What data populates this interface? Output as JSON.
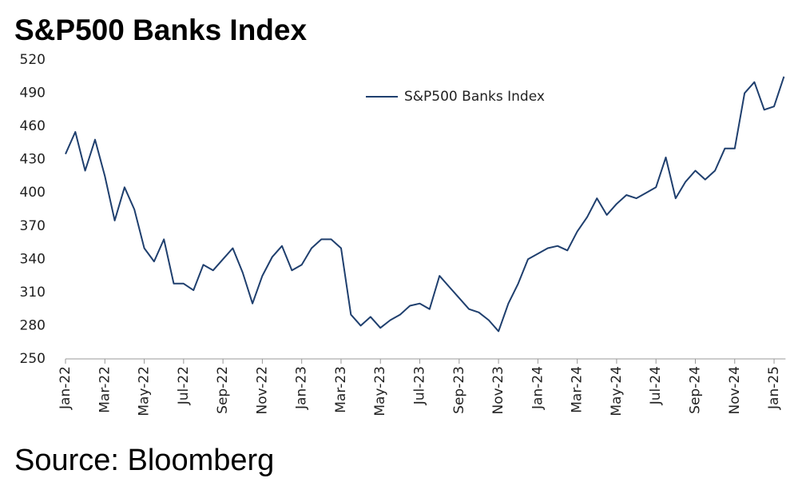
{
  "chart_data": {
    "type": "line",
    "title": "S&P500 Banks Index",
    "source": "Source: Bloomberg",
    "categories": [
      "Jan-22",
      null,
      null,
      null,
      "Mar-22",
      null,
      null,
      null,
      "May-22",
      null,
      null,
      null,
      "Jul-22",
      null,
      null,
      null,
      "Sep-22",
      null,
      null,
      null,
      "Nov-22",
      null,
      null,
      null,
      "Jan-23",
      null,
      null,
      null,
      "Mar-23",
      null,
      null,
      null,
      "May-23",
      null,
      null,
      null,
      "Jul-23",
      null,
      null,
      null,
      "Sep-23",
      null,
      null,
      null,
      "Nov-23",
      null,
      null,
      null,
      "Jan-24",
      null,
      null,
      null,
      "Mar-24",
      null,
      null,
      null,
      "May-24",
      null,
      null,
      null,
      "Jul-24",
      null,
      null,
      null,
      "Sep-24",
      null,
      null,
      null,
      "Nov-24",
      null,
      null,
      null,
      "Jan-25",
      null
    ],
    "series": [
      {
        "name": "S&P500 Banks Index",
        "color": "#1f3f6e",
        "values": [
          435,
          455,
          420,
          448,
          415,
          375,
          405,
          385,
          350,
          338,
          358,
          318,
          318,
          312,
          335,
          330,
          340,
          350,
          328,
          300,
          325,
          342,
          352,
          330,
          335,
          350,
          358,
          358,
          350,
          290,
          280,
          288,
          278,
          285,
          290,
          298,
          300,
          295,
          325,
          315,
          305,
          295,
          292,
          285,
          275,
          300,
          318,
          340,
          345,
          350,
          352,
          348,
          365,
          378,
          395,
          380,
          390,
          398,
          395,
          400,
          405,
          432,
          395,
          410,
          420,
          412,
          420,
          440,
          440,
          490,
          500,
          475,
          478,
          505
        ]
      }
    ],
    "ylim": [
      250,
      520
    ],
    "yticks": [
      250,
      280,
      310,
      340,
      370,
      400,
      430,
      460,
      490,
      520
    ],
    "legend": "top"
  }
}
